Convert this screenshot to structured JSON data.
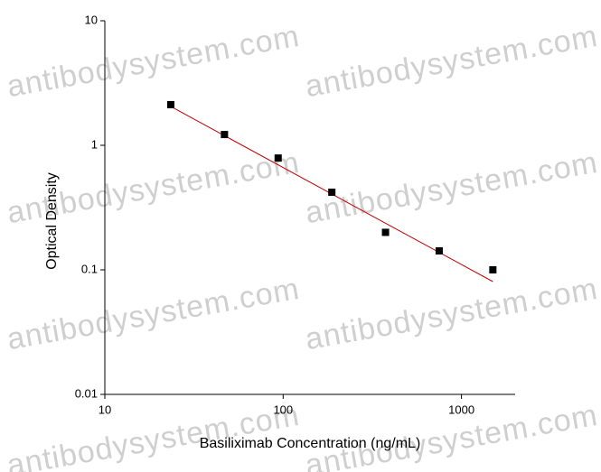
{
  "chart_data": {
    "type": "scatter",
    "x_label": "Basiliximab Concentration (ng/mL)",
    "y_label": "Optical Density",
    "watermark": "antibodysystem.com",
    "log_x": true,
    "log_y": true,
    "xlim": [
      10,
      2000
    ],
    "ylim": [
      0.01,
      10
    ],
    "xticks": [
      10,
      100,
      1000
    ],
    "yticks": [
      0.01,
      0.1,
      1,
      10
    ],
    "x": [
      23.44,
      46.88,
      93.75,
      187.5,
      375,
      750,
      1500
    ],
    "series": [
      {
        "color": "#000000",
        "values": [
          2.12,
          1.22,
          0.79,
          0.42,
          0.2,
          0.142,
          0.1
        ]
      }
    ],
    "fit_line": {
      "color": "#c00000",
      "x": [
        23.44,
        1500
      ],
      "values": [
        2.05,
        0.0805
      ]
    }
  }
}
